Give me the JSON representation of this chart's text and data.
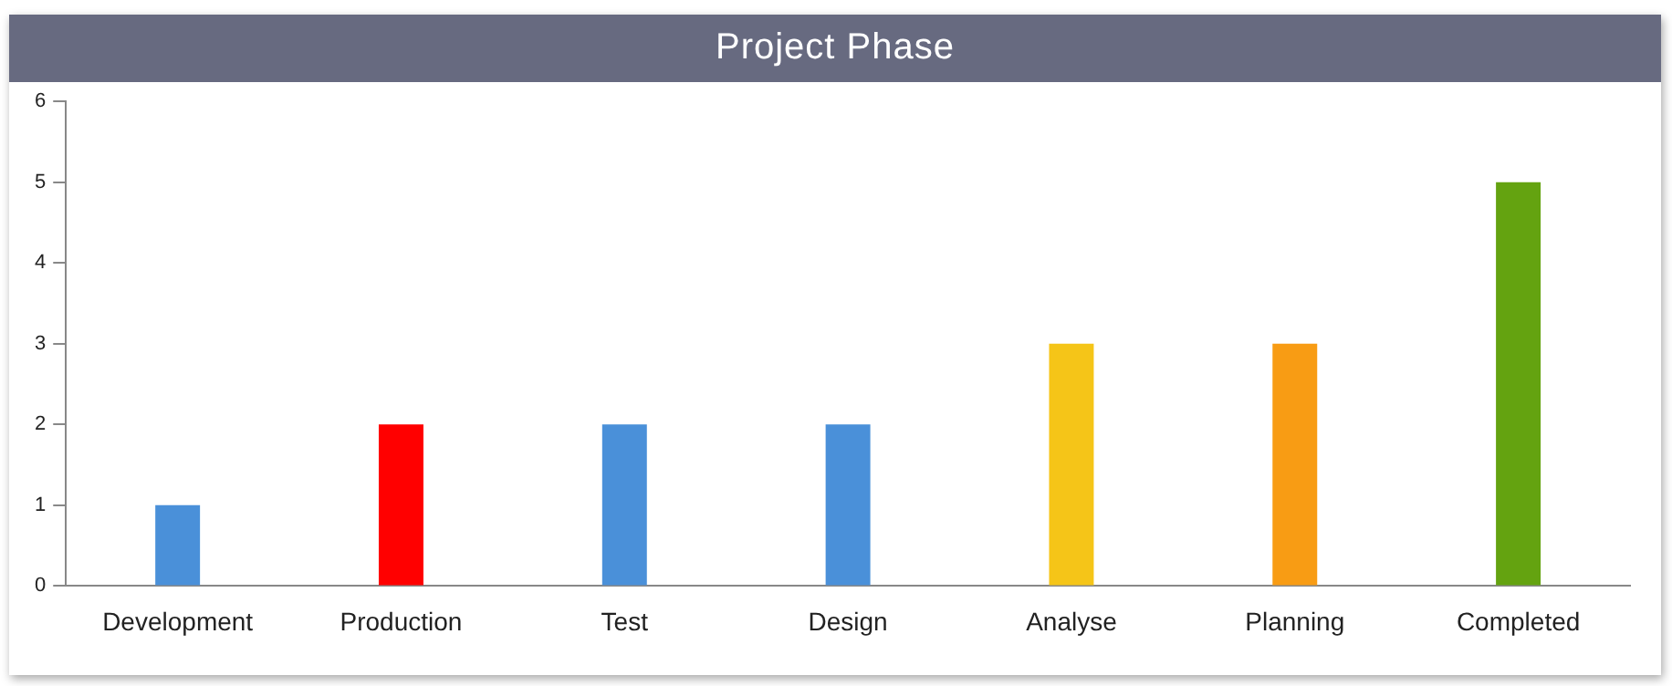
{
  "chart_data": {
    "type": "bar",
    "title": "Project Phase",
    "categories": [
      "Development",
      "Production",
      "Test",
      "Design",
      "Analyse",
      "Planning",
      "Completed"
    ],
    "values": [
      1,
      2,
      2,
      2,
      3,
      3,
      5
    ],
    "colors": [
      "#4a90d9",
      "#ff0000",
      "#4a90d9",
      "#4a90d9",
      "#f5c518",
      "#f89c14",
      "#64a310"
    ],
    "ylim": [
      0,
      6
    ],
    "yticks": [
      0,
      1,
      2,
      3,
      4,
      5,
      6
    ],
    "grid": false,
    "legend": false
  }
}
